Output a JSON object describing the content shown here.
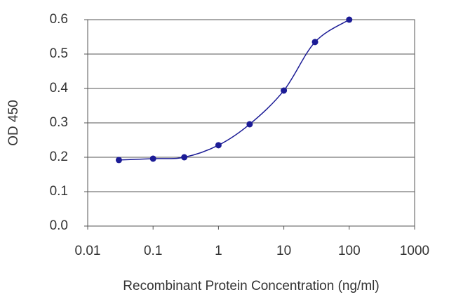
{
  "chart_data": {
    "type": "line",
    "x_label": "Recombinant Protein Concentration (ng/ml)",
    "y_label": "OD 450",
    "x": [
      0.03,
      0.1,
      0.3,
      1,
      3,
      10,
      30,
      100
    ],
    "series": [
      {
        "color": "#1c1c96",
        "values": [
          0.192,
          0.196,
          0.2,
          0.235,
          0.296,
          0.394,
          0.535,
          0.6
        ]
      }
    ],
    "xlim": [
      0.01,
      1000
    ],
    "xticks": [
      0.01,
      0.1,
      1,
      10,
      100,
      1000
    ],
    "xscale": "log",
    "ylim": [
      0,
      0.6
    ],
    "yticks": [
      {
        "value": 0,
        "label": "0.0"
      },
      0.1,
      0.2,
      0.3,
      0.4,
      0.5,
      0.6
    ],
    "grid": true
  }
}
